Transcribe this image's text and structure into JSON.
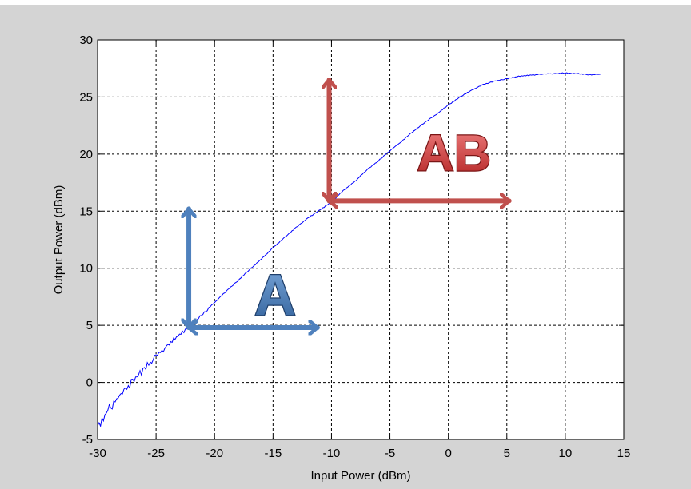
{
  "chart_data": {
    "type": "line",
    "title": "",
    "xlabel": "Input Power (dBm)",
    "ylabel": "Output Power (dBm)",
    "xlim": [
      -30,
      15
    ],
    "ylim": [
      -5,
      30
    ],
    "xticks": [
      -30,
      -25,
      -20,
      -15,
      -10,
      -5,
      0,
      5,
      10,
      15
    ],
    "yticks": [
      -5,
      0,
      5,
      10,
      15,
      20,
      25,
      30
    ],
    "grid": true,
    "grid_style": "dashed",
    "series": [
      {
        "color": "#0000ff",
        "x": [
          -30,
          -29,
          -28,
          -27,
          -26,
          -25,
          -24,
          -23,
          -22,
          -21,
          -20,
          -19,
          -18,
          -17,
          -16,
          -15,
          -14,
          -13,
          -12,
          -11,
          -10,
          -9,
          -8,
          -7,
          -6,
          -5,
          -4,
          -3,
          -2.5,
          -1,
          0,
          1,
          2,
          3,
          4,
          5,
          6,
          7,
          8,
          9,
          10,
          11,
          12,
          13
        ],
        "y": [
          -3.8,
          -2.3,
          -1.0,
          0.1,
          1.2,
          2.3,
          3.2,
          4.2,
          5.0,
          6.0,
          7.0,
          8.0,
          8.9,
          9.9,
          10.8,
          11.8,
          12.7,
          13.6,
          14.4,
          15.1,
          15.8,
          16.8,
          17.6,
          18.6,
          19.4,
          20.3,
          21.1,
          22.0,
          22.4,
          23.5,
          24.3,
          25.0,
          25.6,
          26.1,
          26.4,
          26.6,
          26.8,
          26.9,
          27.0,
          27.05,
          27.1,
          27.05,
          26.95,
          27.0
        ]
      }
    ],
    "annotations": [
      {
        "label": "A",
        "color": "#4f81bd",
        "origin": [
          -22.2,
          4.8
        ],
        "vertical_to": 15.2,
        "horizontal_to": -11.2
      },
      {
        "label": "AB",
        "color": "#c0504d",
        "origin": [
          -10.2,
          15.9
        ],
        "vertical_to": 26.5,
        "horizontal_to": 5.2
      }
    ]
  },
  "colors": {
    "figure_background": "#d4d4d4",
    "plot_background": "#ffffff",
    "series_line": "#0000ff",
    "annotation_a": "#4f81bd",
    "annotation_ab": "#c0504d"
  }
}
